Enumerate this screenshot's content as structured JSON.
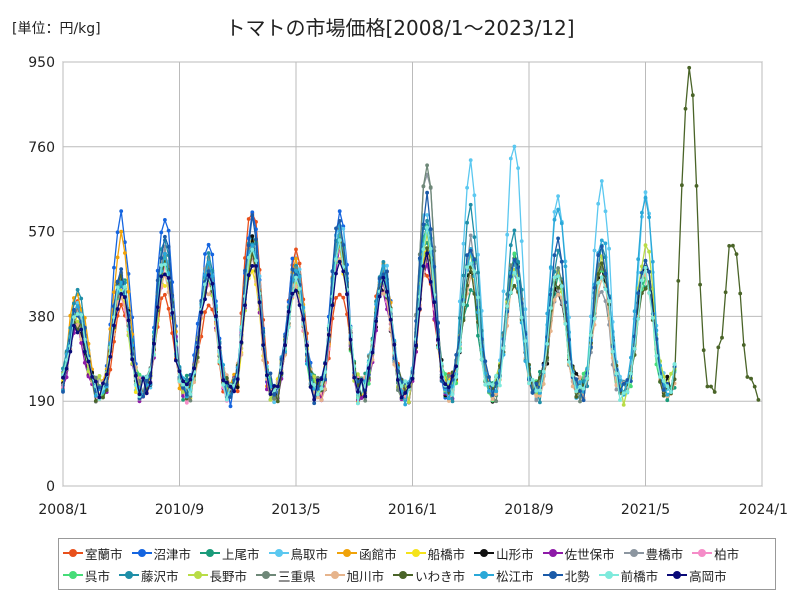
{
  "chart_data": {
    "type": "line",
    "title": "トマトの市場価格[2008/1～2023/12]",
    "unit_label": "[単位：円/kg]",
    "xlabel": "",
    "ylabel": "",
    "x_ticks": [
      "2008/1",
      "2010/9",
      "2013/5",
      "2016/1",
      "2018/9",
      "2021/5",
      "2024/1"
    ],
    "y_ticks": [
      "0",
      "190",
      "380",
      "570",
      "760",
      "950"
    ],
    "ylim": [
      0,
      950
    ],
    "grid": true,
    "legend_position": "bottom",
    "series": [
      {
        "name": "室蘭市",
        "color": "#e8501c",
        "yearly_peaks": [
          430,
          420,
          440,
          420,
          625,
          520,
          450,
          500,
          490
        ]
      },
      {
        "name": "沼津市",
        "color": "#1565e0",
        "yearly_peaks": [
          400,
          610,
          610,
          540,
          600,
          520,
          620,
          500,
          600
        ]
      },
      {
        "name": "上尾市",
        "color": "#1a9b7a",
        "yearly_peaks": [
          380,
          470,
          520,
          480,
          560,
          470,
          560,
          480,
          560,
          440,
          520,
          470,
          500,
          460
        ]
      },
      {
        "name": "鳥取市",
        "color": "#5bc8f0",
        "yearly_peaks": [
          400,
          470,
          530,
          500,
          580,
          500,
          600,
          510,
          620,
          720,
          770,
          640,
          680,
          650
        ]
      },
      {
        "name": "函館市",
        "color": "#f0a30a",
        "yearly_peaks": [
          440,
          550,
          520,
          510,
          540,
          490,
          560,
          500,
          540
        ]
      },
      {
        "name": "船橋市",
        "color": "#f5e31a",
        "yearly_peaks": [
          370,
          430,
          470,
          460,
          490,
          460,
          520,
          470,
          540
        ]
      },
      {
        "name": "山形市",
        "color": "#111111",
        "yearly_peaks": [
          360,
          450,
          500,
          480,
          540,
          460,
          560,
          450,
          520,
          480,
          500,
          450,
          480,
          500
        ]
      },
      {
        "name": "佐世保市",
        "color": "#8e1aa8",
        "yearly_peaks": [
          350,
          460,
          490,
          470,
          510,
          440,
          530,
          430,
          500
        ]
      },
      {
        "name": "豊橋市",
        "color": "#8c96a0",
        "yearly_peaks": [
          390,
          470,
          520,
          490,
          540,
          470,
          560,
          470,
          700,
          540,
          480,
          450,
          440
        ]
      },
      {
        "name": "柏市",
        "color": "#f58cc8",
        "yearly_peaks": [
          380,
          440,
          480,
          460,
          520,
          450,
          540,
          460,
          520
        ]
      },
      {
        "name": "呉市",
        "color": "#46dc78",
        "yearly_peaks": [
          390,
          450,
          500,
          470,
          530,
          460,
          550,
          460,
          580,
          520,
          500,
          480,
          500,
          470
        ]
      },
      {
        "name": "藤沢市",
        "color": "#1f8fa8",
        "yearly_peaks": [
          420,
          470,
          540,
          500,
          560,
          480,
          570,
          480,
          590,
          620,
          560,
          520,
          540
        ]
      },
      {
        "name": "長野市",
        "color": "#b8dc46",
        "yearly_peaks": [
          370,
          440,
          490,
          470,
          520,
          460,
          540,
          470,
          560,
          500,
          480,
          470,
          500,
          540
        ]
      },
      {
        "name": "三重県",
        "color": "#6e8878",
        "yearly_peaks": [
          380,
          460,
          510,
          480,
          540,
          470,
          560,
          470,
          710,
          540,
          500,
          470,
          500
        ]
      },
      {
        "name": "旭川市",
        "color": "#e6b48c",
        "yearly_peaks": [
          360,
          430,
          470,
          450,
          500,
          450,
          520,
          450,
          520,
          470,
          460,
          450,
          460,
          470
        ]
      },
      {
        "name": "いわき市",
        "color": "#4a6428",
        "yearly_peaks": [
          370,
          460,
          500,
          470,
          520,
          460,
          540,
          460,
          520,
          480,
          470,
          460,
          480,
          460,
          930,
          560
        ]
      },
      {
        "name": "松江市",
        "color": "#2aa8d8",
        "yearly_peaks": [
          400,
          470,
          520,
          490,
          550,
          480,
          560,
          480,
          560,
          510,
          490,
          630,
          560,
          640
        ]
      },
      {
        "name": "北勢",
        "color": "#1a5aa8",
        "yearly_peaks": [
          400,
          480,
          560,
          500,
          590,
          490,
          600,
          490,
          640,
          540,
          500,
          560,
          530,
          520
        ]
      },
      {
        "name": "前橋市",
        "color": "#7eeadc",
        "yearly_peaks": [
          380,
          450,
          500,
          470,
          530,
          460,
          540,
          460,
          560,
          500,
          480,
          470,
          490,
          480
        ]
      },
      {
        "name": "高岡市",
        "color": "#0a0a78",
        "yearly_peaks": [
          360,
          430,
          480,
          460,
          510,
          450,
          520,
          450,
          500
        ]
      }
    ]
  }
}
